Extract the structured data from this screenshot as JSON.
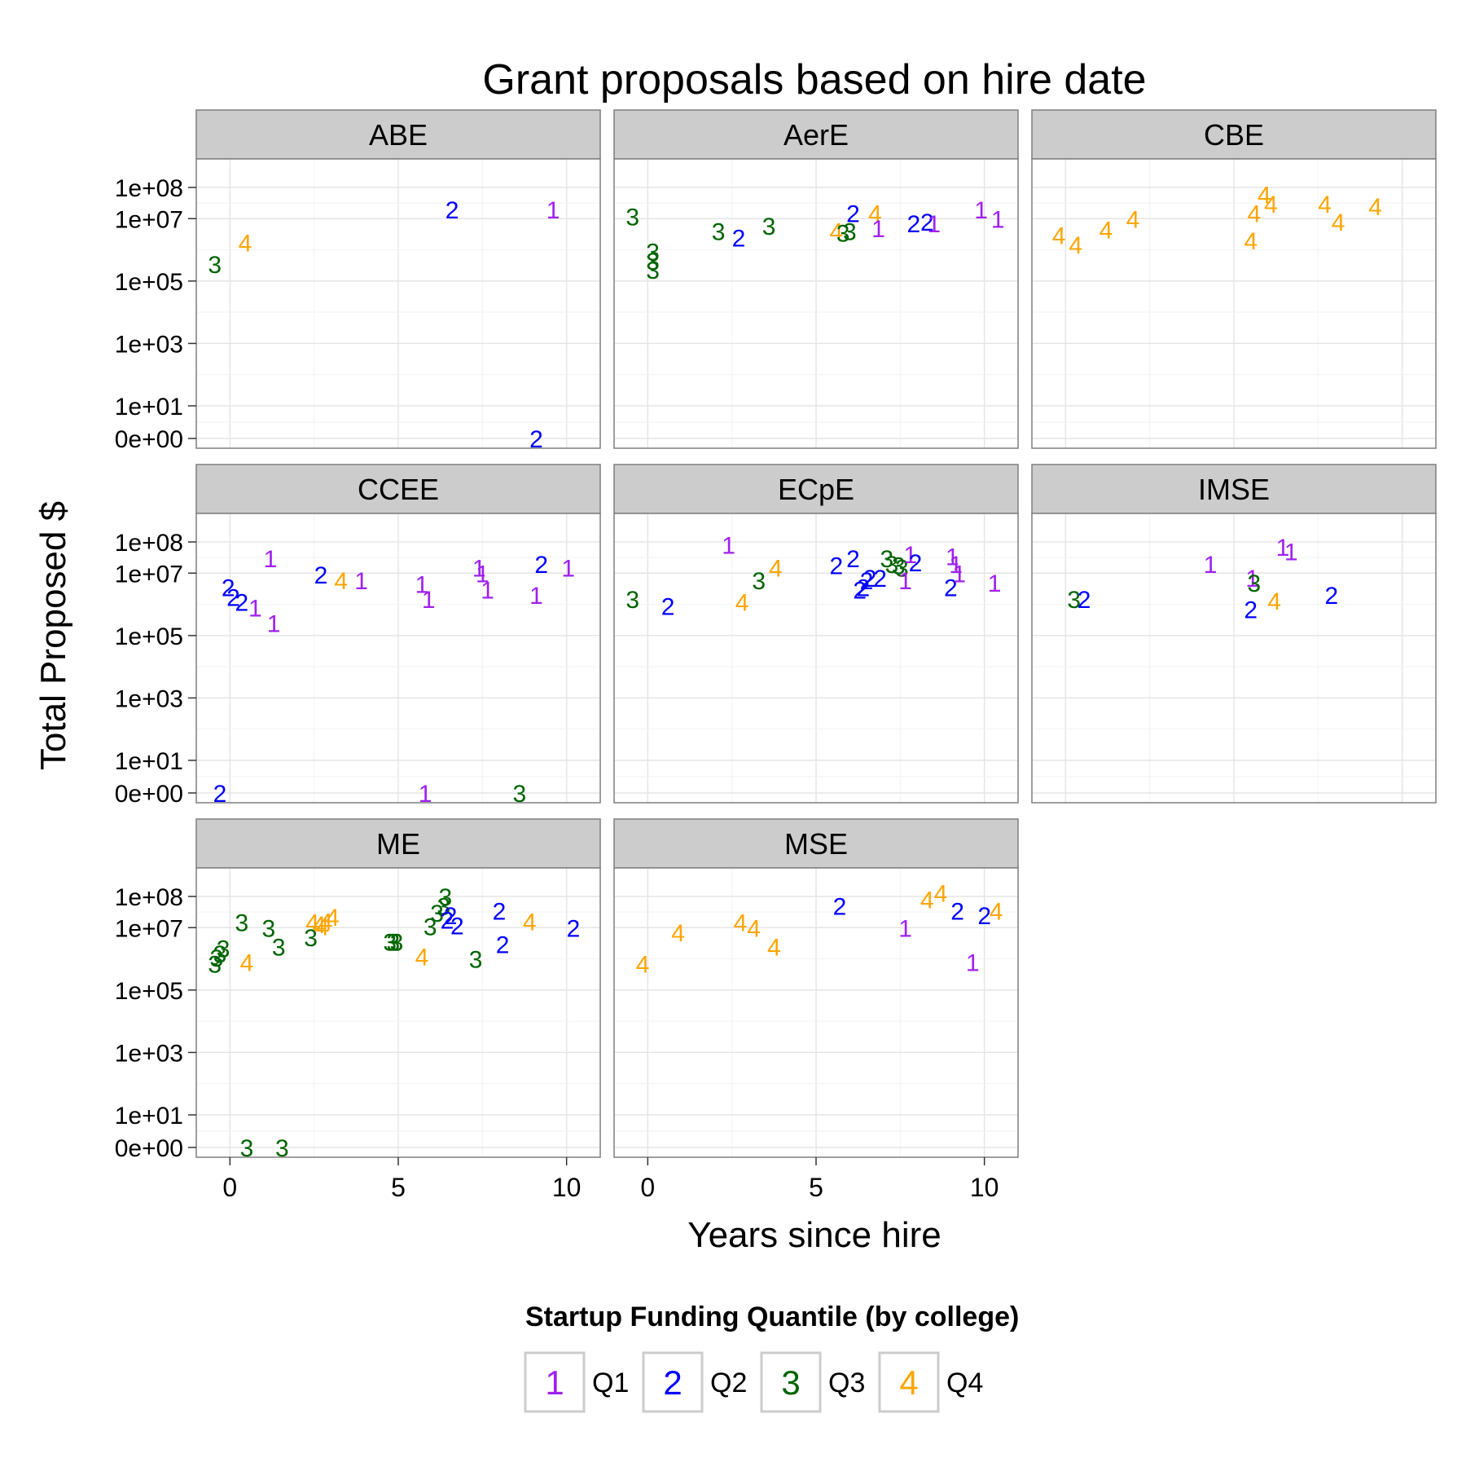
{
  "chart_data": {
    "type": "scatter",
    "title": "Grant proposals based on hire date",
    "xlabel": "Years since hire",
    "ylabel": "Total Proposed $",
    "xlim": [
      -1,
      11
    ],
    "x_ticks": [
      0,
      5,
      10
    ],
    "x_tick_labels": [
      "0",
      "5",
      "10"
    ],
    "y_scale": "log (with 0 shown at bottom)",
    "y_ticks": [
      0,
      10,
      1000,
      100000,
      10000000,
      100000000
    ],
    "y_tick_labels": [
      "0e+00",
      "1e+01",
      "1e+03",
      "1e+05",
      "1e+07",
      "1e+08"
    ],
    "grid": true,
    "legend": {
      "title": "Startup Funding Quantile (by college)",
      "position": "bottom",
      "entries": [
        {
          "key": "1",
          "label": "Q1",
          "color": "#a020f0"
        },
        {
          "key": "2",
          "label": "Q2",
          "color": "#0000ff"
        },
        {
          "key": "3",
          "label": "Q3",
          "color": "#006400"
        },
        {
          "key": "4",
          "label": "Q4",
          "color": "#ffa500"
        }
      ]
    },
    "panels": [
      {
        "name": "ABE",
        "points": [
          {
            "x": 6.6,
            "y": 20000000,
            "q": 2
          },
          {
            "x": 9.6,
            "y": 20000000,
            "q": 1
          },
          {
            "x": -0.45,
            "y": 350000,
            "q": 3
          },
          {
            "x": 0.45,
            "y": 1700000,
            "q": 4
          },
          {
            "x": 9.1,
            "y": 0,
            "q": 2
          }
        ]
      },
      {
        "name": "AerE",
        "points": [
          {
            "x": -0.45,
            "y": 12000000,
            "q": 3
          },
          {
            "x": 0.15,
            "y": 900000,
            "q": 3
          },
          {
            "x": 0.15,
            "y": 450000,
            "q": 3
          },
          {
            "x": 0.15,
            "y": 230000,
            "q": 3
          },
          {
            "x": 2.1,
            "y": 4000000,
            "q": 3
          },
          {
            "x": 2.7,
            "y": 2500000,
            "q": 2
          },
          {
            "x": 3.6,
            "y": 6000000,
            "q": 3
          },
          {
            "x": 5.6,
            "y": 4000000,
            "q": 4
          },
          {
            "x": 5.8,
            "y": 3500000,
            "q": 3
          },
          {
            "x": 6.0,
            "y": 4000000,
            "q": 3
          },
          {
            "x": 6.1,
            "y": 15000000,
            "q": 2
          },
          {
            "x": 6.75,
            "y": 15000000,
            "q": 4
          },
          {
            "x": 6.85,
            "y": 5000000,
            "q": 1
          },
          {
            "x": 7.9,
            "y": 7000000,
            "q": 2
          },
          {
            "x": 8.3,
            "y": 8000000,
            "q": 2
          },
          {
            "x": 8.5,
            "y": 7000000,
            "q": 1
          },
          {
            "x": 9.9,
            "y": 20000000,
            "q": 1
          },
          {
            "x": 10.4,
            "y": 10000000,
            "q": 1
          }
        ]
      },
      {
        "name": "CBE",
        "points": [
          {
            "x": -0.2,
            "y": 3000000,
            "q": 4
          },
          {
            "x": 0.3,
            "y": 1500000,
            "q": 4
          },
          {
            "x": 1.2,
            "y": 4500000,
            "q": 4
          },
          {
            "x": 2.0,
            "y": 10000000,
            "q": 4
          },
          {
            "x": 5.5,
            "y": 2000000,
            "q": 4
          },
          {
            "x": 5.6,
            "y": 15000000,
            "q": 4
          },
          {
            "x": 5.9,
            "y": 60000000,
            "q": 4
          },
          {
            "x": 6.1,
            "y": 30000000,
            "q": 4
          },
          {
            "x": 7.7,
            "y": 30000000,
            "q": 4
          },
          {
            "x": 8.1,
            "y": 8000000,
            "q": 4
          },
          {
            "x": 9.2,
            "y": 25000000,
            "q": 4
          }
        ]
      },
      {
        "name": "CCEE",
        "points": [
          {
            "x": -0.05,
            "y": 3500000,
            "q": 2
          },
          {
            "x": 0.1,
            "y": 1700000,
            "q": 2
          },
          {
            "x": 0.35,
            "y": 1200000,
            "q": 2
          },
          {
            "x": 0.75,
            "y": 800000,
            "q": 1
          },
          {
            "x": 1.2,
            "y": 30000000,
            "q": 1
          },
          {
            "x": 1.3,
            "y": 250000,
            "q": 1
          },
          {
            "x": 2.7,
            "y": 9000000,
            "q": 2
          },
          {
            "x": 3.3,
            "y": 6000000,
            "q": 4
          },
          {
            "x": 3.9,
            "y": 6000000,
            "q": 1
          },
          {
            "x": 5.7,
            "y": 4500000,
            "q": 1
          },
          {
            "x": 5.9,
            "y": 1500000,
            "q": 1
          },
          {
            "x": 7.4,
            "y": 15000000,
            "q": 1
          },
          {
            "x": 7.5,
            "y": 10000000,
            "q": 1
          },
          {
            "x": 7.65,
            "y": 3000000,
            "q": 1
          },
          {
            "x": 9.1,
            "y": 2000000,
            "q": 1
          },
          {
            "x": 9.25,
            "y": 20000000,
            "q": 2
          },
          {
            "x": 10.05,
            "y": 15000000,
            "q": 1
          },
          {
            "x": -0.3,
            "y": 0,
            "q": 2
          },
          {
            "x": 5.8,
            "y": 0,
            "q": 1
          },
          {
            "x": 8.6,
            "y": 0,
            "q": 3
          }
        ]
      },
      {
        "name": "ECpE",
        "points": [
          {
            "x": -0.45,
            "y": 1500000,
            "q": 3
          },
          {
            "x": 0.6,
            "y": 900000,
            "q": 2
          },
          {
            "x": 2.4,
            "y": 80000000,
            "q": 1
          },
          {
            "x": 2.8,
            "y": 1200000,
            "q": 4
          },
          {
            "x": 3.3,
            "y": 6000000,
            "q": 3
          },
          {
            "x": 3.8,
            "y": 15000000,
            "q": 4
          },
          {
            "x": 5.6,
            "y": 18000000,
            "q": 2
          },
          {
            "x": 6.1,
            "y": 30000000,
            "q": 2
          },
          {
            "x": 6.3,
            "y": 3000000,
            "q": 2
          },
          {
            "x": 6.4,
            "y": 3500000,
            "q": 2
          },
          {
            "x": 6.5,
            "y": 6000000,
            "q": 2
          },
          {
            "x": 6.6,
            "y": 7000000,
            "q": 2
          },
          {
            "x": 6.9,
            "y": 7000000,
            "q": 2
          },
          {
            "x": 7.1,
            "y": 30000000,
            "q": 3
          },
          {
            "x": 7.25,
            "y": 20000000,
            "q": 3
          },
          {
            "x": 7.45,
            "y": 18000000,
            "q": 3
          },
          {
            "x": 7.55,
            "y": 15000000,
            "q": 3
          },
          {
            "x": 7.65,
            "y": 6000000,
            "q": 1
          },
          {
            "x": 7.8,
            "y": 40000000,
            "q": 1
          },
          {
            "x": 7.95,
            "y": 22000000,
            "q": 2
          },
          {
            "x": 9.0,
            "y": 3500000,
            "q": 2
          },
          {
            "x": 9.05,
            "y": 35000000,
            "q": 1
          },
          {
            "x": 9.15,
            "y": 20000000,
            "q": 1
          },
          {
            "x": 9.25,
            "y": 10000000,
            "q": 1
          },
          {
            "x": 10.3,
            "y": 5000000,
            "q": 1
          }
        ]
      },
      {
        "name": "IMSE",
        "points": [
          {
            "x": 0.25,
            "y": 1500000,
            "q": 3
          },
          {
            "x": 0.55,
            "y": 1500000,
            "q": 2
          },
          {
            "x": 4.3,
            "y": 20000000,
            "q": 1
          },
          {
            "x": 5.5,
            "y": 700000,
            "q": 2
          },
          {
            "x": 5.55,
            "y": 7000000,
            "q": 1
          },
          {
            "x": 5.6,
            "y": 5000000,
            "q": 3
          },
          {
            "x": 6.2,
            "y": 1300000,
            "q": 4
          },
          {
            "x": 6.45,
            "y": 70000000,
            "q": 1
          },
          {
            "x": 6.7,
            "y": 50000000,
            "q": 1
          },
          {
            "x": 7.9,
            "y": 2000000,
            "q": 2
          }
        ]
      },
      {
        "name": "ME",
        "points": [
          {
            "x": -0.45,
            "y": 700000,
            "q": 3
          },
          {
            "x": -0.4,
            "y": 1100000,
            "q": 3
          },
          {
            "x": -0.3,
            "y": 1500000,
            "q": 3
          },
          {
            "x": -0.2,
            "y": 2200000,
            "q": 3
          },
          {
            "x": 0.35,
            "y": 15000000,
            "q": 3
          },
          {
            "x": 0.5,
            "y": 800000,
            "q": 4
          },
          {
            "x": 1.15,
            "y": 10000000,
            "q": 3
          },
          {
            "x": 1.45,
            "y": 2500000,
            "q": 3
          },
          {
            "x": 2.4,
            "y": 5000000,
            "q": 3
          },
          {
            "x": 2.45,
            "y": 15000000,
            "q": 4
          },
          {
            "x": 2.65,
            "y": 13000000,
            "q": 4
          },
          {
            "x": 2.75,
            "y": 11000000,
            "q": 4
          },
          {
            "x": 2.85,
            "y": 16000000,
            "q": 4
          },
          {
            "x": 3.05,
            "y": 22000000,
            "q": 4
          },
          {
            "x": 4.75,
            "y": 3500000,
            "q": 3
          },
          {
            "x": 4.85,
            "y": 3500000,
            "q": 3
          },
          {
            "x": 4.95,
            "y": 3500000,
            "q": 3
          },
          {
            "x": 5.7,
            "y": 1200000,
            "q": 4
          },
          {
            "x": 5.95,
            "y": 11000000,
            "q": 3
          },
          {
            "x": 6.15,
            "y": 30000000,
            "q": 3
          },
          {
            "x": 6.35,
            "y": 50000000,
            "q": 3
          },
          {
            "x": 6.4,
            "y": 100000000,
            "q": 3
          },
          {
            "x": 6.45,
            "y": 18000000,
            "q": 2
          },
          {
            "x": 6.55,
            "y": 25000000,
            "q": 2
          },
          {
            "x": 6.75,
            "y": 12000000,
            "q": 2
          },
          {
            "x": 7.3,
            "y": 1000000,
            "q": 3
          },
          {
            "x": 8.0,
            "y": 35000000,
            "q": 2
          },
          {
            "x": 8.1,
            "y": 3000000,
            "q": 2
          },
          {
            "x": 8.9,
            "y": 16000000,
            "q": 4
          },
          {
            "x": 10.2,
            "y": 10000000,
            "q": 2
          },
          {
            "x": 0.5,
            "y": 0,
            "q": 3
          },
          {
            "x": 1.55,
            "y": 0,
            "q": 3
          }
        ]
      },
      {
        "name": "MSE",
        "points": [
          {
            "x": -0.15,
            "y": 700000,
            "q": 4
          },
          {
            "x": 0.9,
            "y": 7000000,
            "q": 4
          },
          {
            "x": 2.75,
            "y": 15000000,
            "q": 4
          },
          {
            "x": 3.15,
            "y": 10000000,
            "q": 4
          },
          {
            "x": 3.75,
            "y": 2500000,
            "q": 4
          },
          {
            "x": 5.7,
            "y": 50000000,
            "q": 2
          },
          {
            "x": 7.65,
            "y": 10000000,
            "q": 1
          },
          {
            "x": 8.3,
            "y": 80000000,
            "q": 4
          },
          {
            "x": 8.7,
            "y": 130000000,
            "q": 4
          },
          {
            "x": 9.2,
            "y": 35000000,
            "q": 2
          },
          {
            "x": 9.65,
            "y": 800000,
            "q": 1
          },
          {
            "x": 10.0,
            "y": 25000000,
            "q": 2
          },
          {
            "x": 10.35,
            "y": 35000000,
            "q": 4
          }
        ]
      }
    ]
  }
}
